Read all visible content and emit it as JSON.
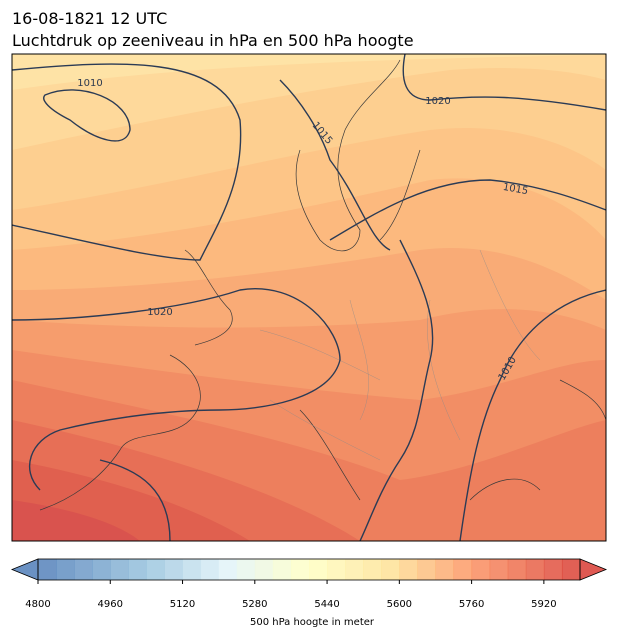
{
  "header": {
    "title_line1": "16-08-1821 12 UTC",
    "title_line2": "Luchtdruk op zeeniveau in hPa en 500 hPa hoogte"
  },
  "map": {
    "contour_labels": [
      "1010",
      "1015",
      "1020",
      "1015",
      "1020",
      "1010"
    ]
  },
  "colorbar": {
    "label": "500 hPa hoogte in meter",
    "lim": [
      4800,
      6000
    ],
    "step": 40,
    "ticks": [
      4800,
      4960,
      5120,
      5280,
      5440,
      5600,
      5760,
      5920
    ]
  }
}
